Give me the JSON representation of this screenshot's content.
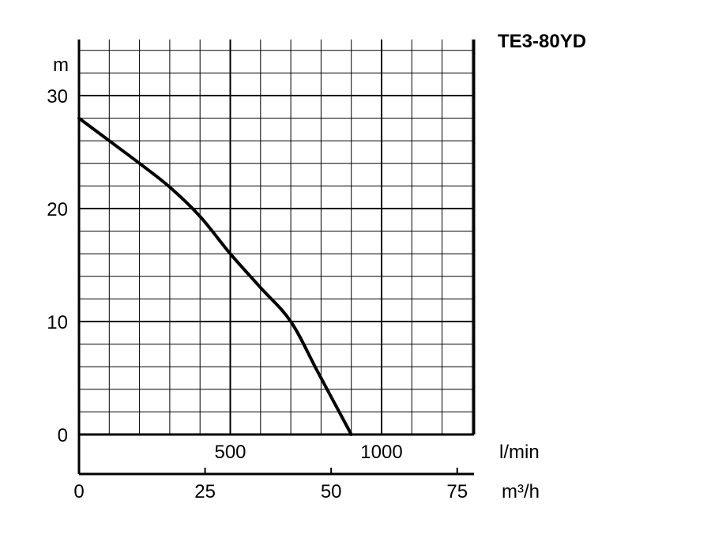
{
  "chart_data": {
    "type": "line",
    "title": "TE3-80YD",
    "y_unit": "m",
    "x_unit_primary": "l/min",
    "x_unit_secondary": "m³/h",
    "ylim": [
      0,
      35
    ],
    "xlim": [
      0,
      1300
    ],
    "y_ticks": [
      0,
      10,
      20,
      30
    ],
    "x_ticks_primary": [
      500,
      1000
    ],
    "x_ticks_secondary": [
      0,
      25,
      50,
      75
    ],
    "secondary_per_primary": 0.06,
    "grid": true,
    "series": [
      {
        "x": [
          0,
          100,
          200,
          300,
          400,
          500,
          600,
          700,
          790,
          900
        ],
        "y": [
          28,
          26,
          24,
          21.9,
          19.3,
          16,
          13,
          10,
          5.5,
          0
        ]
      }
    ]
  },
  "colors": {
    "line": "#000000",
    "grid": "#000000"
  }
}
